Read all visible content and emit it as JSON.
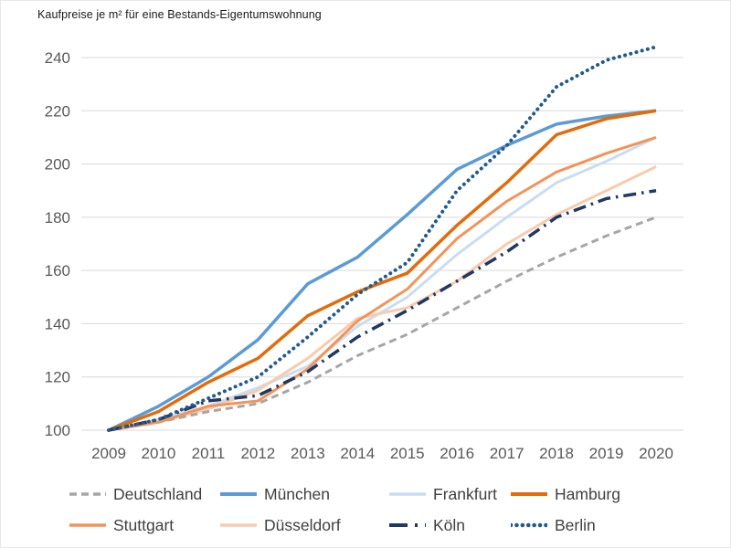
{
  "title": "Kaufpreise je m² für eine Bestands-Eigentumswohnung",
  "chart_data": {
    "type": "line",
    "title": "Kaufpreise je m² für eine Bestands-Eigentumswohnung",
    "x": [
      2009,
      2010,
      2011,
      2012,
      2013,
      2014,
      2015,
      2016,
      2017,
      2018,
      2019,
      2020
    ],
    "xlabel": "",
    "ylabel": "",
    "ylim": [
      100,
      240
    ],
    "ytick_step": 20,
    "grid": true,
    "legend_position": "bottom",
    "series": [
      {
        "name": "Deutschland",
        "color": "#a6a6a6",
        "style": "dashed",
        "width": 3,
        "values": [
          100,
          103,
          107,
          110,
          118,
          128,
          136,
          146,
          156,
          165,
          173,
          180
        ]
      },
      {
        "name": "München",
        "color": "#5b9bd5",
        "style": "solid",
        "width": 3.5,
        "values": [
          100,
          109,
          120,
          134,
          155,
          165,
          181,
          198,
          207,
          215,
          218,
          220
        ]
      },
      {
        "name": "Frankfurt",
        "color": "#c9ddf2",
        "style": "solid",
        "width": 3,
        "values": [
          100,
          104,
          109,
          116,
          124,
          139,
          150,
          166,
          180,
          193,
          201,
          210
        ]
      },
      {
        "name": "Hamburg",
        "color": "#e36b0a",
        "style": "solid",
        "width": 3.5,
        "values": [
          100,
          107,
          118,
          127,
          143,
          152,
          159,
          177,
          193,
          211,
          217,
          220
        ]
      },
      {
        "name": "Stuttgart",
        "color": "#f29459",
        "style": "solid",
        "width": 3,
        "values": [
          100,
          103,
          109,
          111,
          123,
          141,
          153,
          172,
          186,
          197,
          204,
          210
        ]
      },
      {
        "name": "Düsseldorf",
        "color": "#f8cbad",
        "style": "solid",
        "width": 3,
        "values": [
          100,
          103,
          108,
          115,
          127,
          142,
          146,
          156,
          170,
          181,
          190,
          199
        ]
      },
      {
        "name": "Köln",
        "color": "#1f3864",
        "style": "dashdot",
        "width": 3.5,
        "values": [
          100,
          104,
          111,
          113,
          122,
          135,
          145,
          156,
          167,
          180,
          187,
          190
        ]
      },
      {
        "name": "Berlin",
        "color": "#235a8c",
        "style": "dotted",
        "width": 4,
        "values": [
          100,
          104,
          112,
          120,
          135,
          151,
          163,
          190,
          207,
          229,
          239,
          244
        ]
      }
    ]
  }
}
